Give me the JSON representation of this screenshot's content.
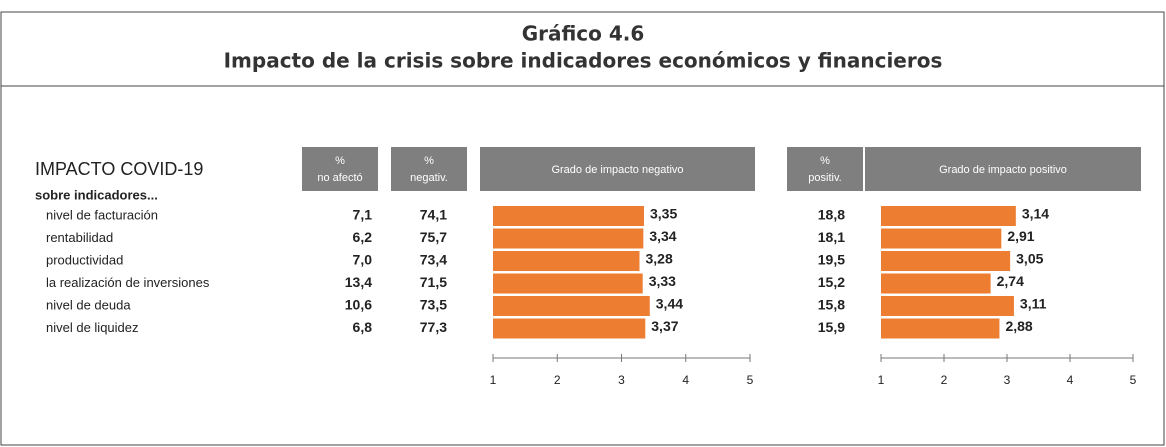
{
  "header": {
    "title": "Gráfico 4.6",
    "subtitle": "Impacto de la crisis sobre indicadores económicos y financieros"
  },
  "panel_title": "IMPACTO COVID-19",
  "group_label": "sobre indicadores...",
  "columns": [
    {
      "symbol": "%",
      "label": "no afectó"
    },
    {
      "symbol": "%",
      "label": "negativ."
    },
    {
      "symbol": "%",
      "label": "positiv."
    }
  ],
  "table": {
    "rows": [
      {
        "label": "nivel de facturación",
        "cells": [
          "7,1",
          "74,1",
          "18,8"
        ]
      },
      {
        "label": "rentabilidad",
        "cells": [
          "6,2",
          "75,7",
          "18,1"
        ]
      },
      {
        "label": "productividad",
        "cells": [
          "7,0",
          "73,4",
          "19,5"
        ]
      },
      {
        "label": "la realización de inversiones",
        "cells": [
          "13,4",
          "71,5",
          "15,2"
        ]
      },
      {
        "label": "nivel de deuda",
        "cells": [
          "10,6",
          "73,5",
          "15,8"
        ]
      },
      {
        "label": "nivel de liquidez",
        "cells": [
          "6,8",
          "77,3",
          "15,9"
        ]
      }
    ]
  },
  "chart_data": [
    {
      "type": "bar",
      "orientation": "horizontal",
      "title": "Grado de impacto negativo",
      "color": "#ed7d31",
      "values": [
        3.35,
        3.34,
        3.28,
        3.33,
        3.44,
        3.37
      ],
      "value_labels": [
        "3,35",
        "3,34",
        "3,28",
        "3,33",
        "3,44",
        "3,37"
      ],
      "xlim": [
        1,
        5
      ],
      "xticks": [
        1,
        2,
        3,
        4,
        5
      ]
    },
    {
      "type": "bar",
      "orientation": "horizontal",
      "title": "Grado de impacto positivo",
      "color": "#ed7d31",
      "values": [
        3.14,
        2.91,
        3.05,
        2.74,
        3.11,
        2.88
      ],
      "value_labels": [
        "3,14",
        "2,91",
        "3,05",
        "2,74",
        "3,11",
        "2,88"
      ],
      "xlim": [
        1,
        5
      ],
      "xticks": [
        1,
        2,
        3,
        4,
        5
      ]
    }
  ]
}
